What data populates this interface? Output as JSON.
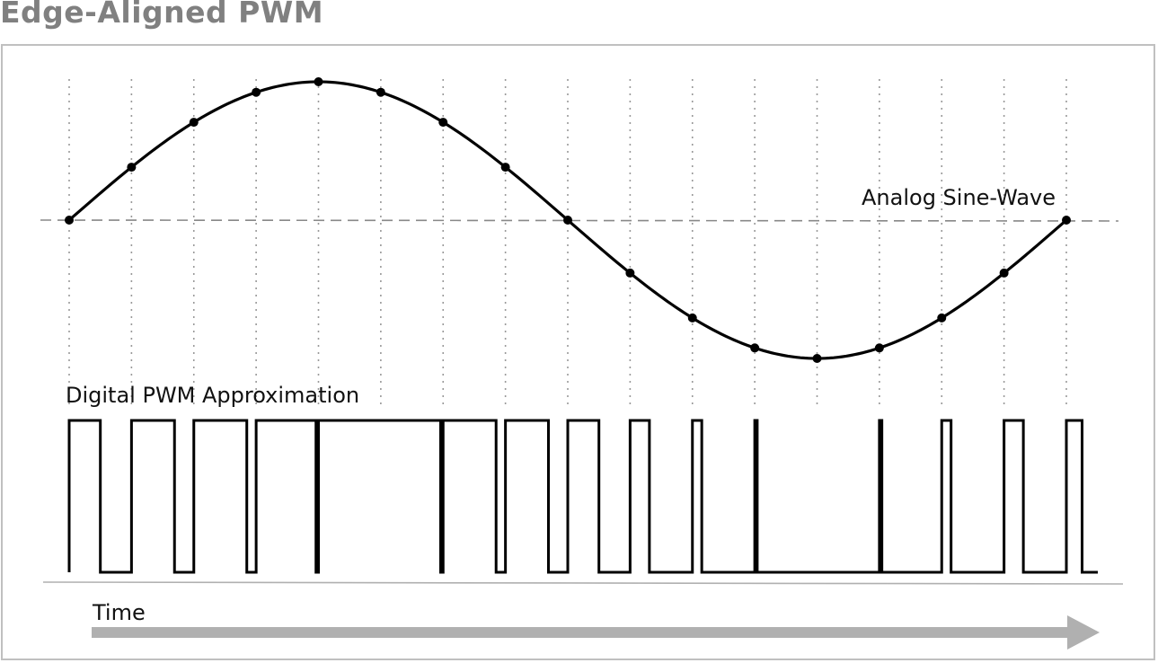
{
  "title": "Edge-Aligned PWM",
  "labels": {
    "analog": "Analog Sine-Wave",
    "digital": "Digital PWM Approximation",
    "time": "Time"
  },
  "colors": {
    "title": "#808080",
    "frame": "#c0c0c0",
    "grid": "#999999",
    "zero_line": "#888888",
    "curve": "#000000",
    "arrow": "#b0b0b0"
  },
  "sine": {
    "samples": 17,
    "periods": 1
  },
  "pwm": {
    "duty_cycles": [
      0.5,
      0.69,
      0.85,
      0.96,
      1.0,
      0.96,
      0.85,
      0.69,
      0.5,
      0.31,
      0.15,
      0.04,
      0.0,
      0.04,
      0.15,
      0.31,
      0.5
    ]
  }
}
